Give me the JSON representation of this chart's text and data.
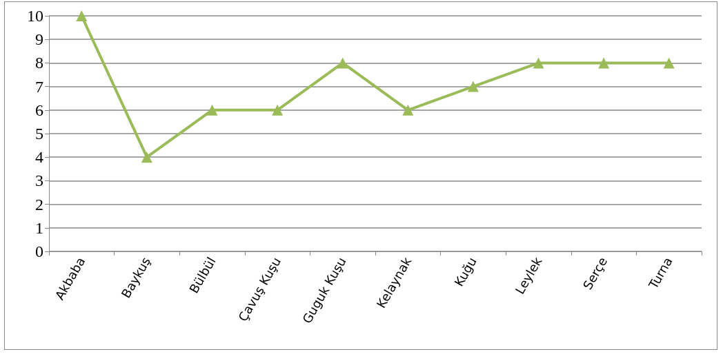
{
  "chart_data": {
    "type": "line",
    "categories": [
      "Akbaba",
      "Baykuş",
      "Bülbül",
      "Çavuş Kuşu",
      "Guguk Kuşu",
      "Kelaynak",
      "Kuğu",
      "Leylek",
      "Serçe",
      "Turna"
    ],
    "values": [
      10,
      4,
      6,
      6,
      8,
      6,
      7,
      8,
      8,
      8
    ],
    "color": "#9bbb59",
    "ylim": [
      0,
      10
    ],
    "yticks": [
      0,
      1,
      2,
      3,
      4,
      5,
      6,
      7,
      8,
      9,
      10
    ],
    "grid": "y",
    "marker": "triangle",
    "line_style": "solid"
  }
}
